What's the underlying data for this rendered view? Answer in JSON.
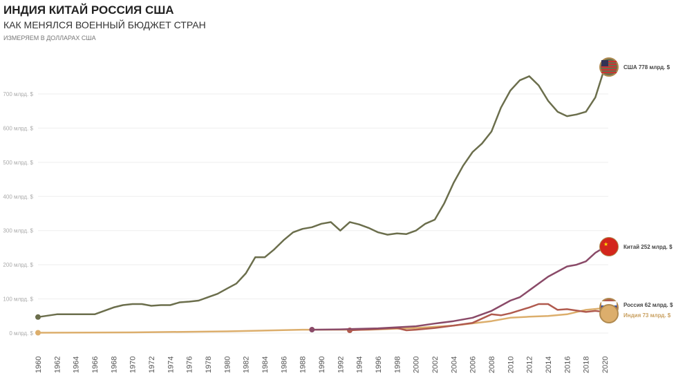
{
  "header": {
    "title": "ИНДИЯ КИТАЙ РОССИЯ США",
    "subtitle": "КАК МЕНЯЛСЯ ВОЕННЫЙ БЮДЖЕТ СТРАН",
    "note": "ИЗМЕРЯЕМ В ДОЛЛАРАХ США"
  },
  "chart_data": {
    "type": "line",
    "title": "ИНДИЯ КИТАЙ РОССИЯ США",
    "ylim": [
      0,
      780
    ],
    "xlim": [
      1960,
      2020
    ],
    "grid": true,
    "y_ticks": [
      {
        "v": 0,
        "label": "0 млрд. $"
      },
      {
        "v": 100,
        "label": "100 млрд. $"
      },
      {
        "v": 200,
        "label": "200 млрд. $"
      },
      {
        "v": 300,
        "label": "300 млрд. $"
      },
      {
        "v": 400,
        "label": "400 млрд. $"
      },
      {
        "v": 500,
        "label": "500 млрд. $"
      },
      {
        "v": 600,
        "label": "600 млрд. $"
      },
      {
        "v": 700,
        "label": "700 млрд. $"
      }
    ],
    "x_ticks": [
      "1960",
      "1962",
      "1964",
      "1966",
      "1968",
      "1970",
      "1972",
      "1974",
      "1976",
      "1978",
      "1980",
      "1982",
      "1984",
      "1986",
      "1988",
      "1990",
      "1992",
      "1994",
      "1996",
      "1998",
      "2000",
      "2002",
      "2004",
      "2006",
      "2008",
      "2010",
      "2012",
      "2014",
      "2016",
      "2018",
      "2020"
    ],
    "series": [
      {
        "name": "США",
        "label": "США 778 млрд. $",
        "color": "#6b6e4c",
        "flag": "usa-flag",
        "x": [
          1960,
          1962,
          1964,
          1966,
          1968,
          1969,
          1970,
          1971,
          1972,
          1973,
          1974,
          1975,
          1976,
          1977,
          1978,
          1979,
          1980,
          1981,
          1982,
          1983,
          1984,
          1985,
          1986,
          1987,
          1988,
          1989,
          1990,
          1991,
          1992,
          1993,
          1994,
          1995,
          1996,
          1997,
          1998,
          1999,
          2000,
          2001,
          2002,
          2003,
          2004,
          2005,
          2006,
          2007,
          2008,
          2009,
          2010,
          2011,
          2012,
          2013,
          2014,
          2015,
          2016,
          2017,
          2018,
          2019,
          2020
        ],
        "y": [
          47,
          55,
          55,
          55,
          75,
          82,
          85,
          85,
          80,
          82,
          82,
          90,
          92,
          95,
          105,
          115,
          130,
          145,
          175,
          222,
          222,
          245,
          272,
          295,
          305,
          310,
          320,
          325,
          300,
          325,
          318,
          308,
          295,
          288,
          292,
          290,
          300,
          320,
          332,
          380,
          440,
          490,
          530,
          555,
          590,
          660,
          710,
          740,
          752,
          725,
          680,
          648,
          635,
          640,
          648,
          690,
          778
        ]
      },
      {
        "name": "Китай",
        "label": "Китай 252 млрд. $",
        "color": "#8a4a68",
        "flag": "china-flag",
        "x": [
          1989,
          1992,
          1996,
          2000,
          2002,
          2004,
          2006,
          2008,
          2010,
          2011,
          2012,
          2014,
          2016,
          2017,
          2018,
          2019,
          2020
        ],
        "y": [
          10,
          11,
          14,
          20,
          28,
          35,
          45,
          65,
          95,
          105,
          125,
          165,
          195,
          200,
          210,
          235,
          252
        ]
      },
      {
        "name": "Россия",
        "label": "Россия 62 млрд. $",
        "color": "#b05a4e",
        "flag": "russia-flag",
        "x": [
          1993,
          1996,
          1998,
          1999,
          2000,
          2002,
          2004,
          2006,
          2008,
          2009,
          2010,
          2012,
          2013,
          2014,
          2015,
          2016,
          2017,
          2018,
          2019,
          2020
        ],
        "y": [
          8,
          12,
          15,
          8,
          10,
          15,
          22,
          30,
          55,
          52,
          58,
          75,
          85,
          85,
          68,
          70,
          66,
          62,
          65,
          62
        ]
      },
      {
        "name": "Индия",
        "label": "Индия 73 млрд. $",
        "color": "#dcae6c",
        "flag": "india-flag",
        "x": [
          1960,
          1970,
          1980,
          1988,
          1990,
          1995,
          2000,
          2004,
          2008,
          2010,
          2012,
          2014,
          2016,
          2018,
          2020
        ],
        "y": [
          1,
          2,
          5,
          10,
          10,
          10,
          15,
          22,
          35,
          45,
          48,
          50,
          55,
          68,
          73
        ]
      }
    ]
  }
}
